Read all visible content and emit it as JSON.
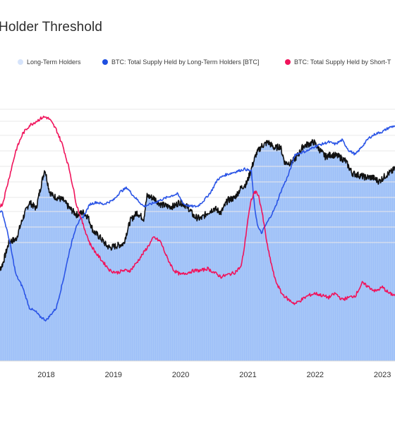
{
  "title": "Holder Threshold",
  "legend": [
    {
      "label": "Long-Term Holders",
      "color": "#d6e4fb"
    },
    {
      "label": "BTC: Total Supply Held by Long-Term Holders [BTC]",
      "color": "#1f4fe0"
    },
    {
      "label": "BTC: Total Supply Held by Short-T",
      "color": "#f0135b"
    }
  ],
  "colors": {
    "area_fill": "#9ec0f8",
    "price_line": "#111111",
    "lth_line": "#2b55e6",
    "sth_line": "#f0135b",
    "grid": "#e9e9e9"
  },
  "chart_data": {
    "type": "line",
    "grid": true,
    "x_range": [
      2017.25,
      2023.25
    ],
    "x_ticks": [
      "2018",
      "2019",
      "2020",
      "2021",
      "2022",
      "2023"
    ],
    "x_tick_values": [
      2018,
      2019,
      2020,
      2021,
      2022,
      2023
    ],
    "y_range": [
      0,
      100
    ],
    "note_units": "relative scale 0-100, unlabeled in original",
    "series": [
      {
        "key": "price_area",
        "x": [
          2017.25,
          2017.35,
          2017.45,
          2017.55,
          2017.65,
          2017.75,
          2017.85,
          2017.95,
          2017.98,
          2018.05,
          2018.1,
          2018.18,
          2018.25,
          2018.35,
          2018.45,
          2018.55,
          2018.62,
          2018.7,
          2018.8,
          2018.9,
          2018.95,
          2019.05,
          2019.15,
          2019.25,
          2019.35,
          2019.45,
          2019.5,
          2019.6,
          2019.7,
          2019.8,
          2019.9,
          2019.98,
          2020.05,
          2020.12,
          2020.2,
          2020.3,
          2020.4,
          2020.5,
          2020.6,
          2020.7,
          2020.8,
          2020.9,
          2020.98,
          2021.05,
          2021.12,
          2021.2,
          2021.3,
          2021.4,
          2021.48,
          2021.55,
          2021.65,
          2021.75,
          2021.82,
          2021.9,
          2021.98,
          2022.05,
          2022.15,
          2022.25,
          2022.35,
          2022.45,
          2022.55,
          2022.65,
          2022.75,
          2022.85,
          2022.95,
          2023.05,
          2023.15,
          2023.25
        ],
        "y": [
          27,
          33,
          44,
          45,
          55,
          63,
          60,
          75,
          79,
          68,
          66,
          65,
          64,
          60,
          57,
          58,
          56,
          49,
          46,
          42,
          41,
          42,
          43,
          54,
          58,
          55,
          66,
          65,
          62,
          61,
          61,
          63,
          62,
          60,
          56,
          55,
          58,
          60,
          58,
          64,
          65,
          70,
          72,
          79,
          86,
          90,
          92,
          89,
          90,
          82,
          82,
          86,
          90,
          91,
          92,
          89,
          85,
          86,
          85,
          83,
          77,
          76,
          75,
          75,
          73,
          76,
          78,
          82
        ]
      },
      {
        "key": "lth_supply",
        "x": [
          2017.25,
          2017.35,
          2017.45,
          2017.55,
          2017.65,
          2017.75,
          2017.85,
          2017.9,
          2017.95,
          2018.0,
          2018.05,
          2018.15,
          2018.25,
          2018.35,
          2018.45,
          2018.55,
          2018.65,
          2018.75,
          2018.85,
          2019.0,
          2019.1,
          2019.2,
          2019.3,
          2019.45,
          2019.55,
          2019.7,
          2019.85,
          2019.95,
          2020.05,
          2020.15,
          2020.25,
          2020.35,
          2020.45,
          2020.55,
          2020.65,
          2020.75,
          2020.85,
          2020.95,
          2021.05,
          2021.1,
          2021.15,
          2021.2,
          2021.3,
          2021.4,
          2021.5,
          2021.6,
          2021.7,
          2021.8,
          2021.9,
          2022.0,
          2022.1,
          2022.2,
          2022.3,
          2022.4,
          2022.5,
          2022.6,
          2022.7,
          2022.8,
          2022.9,
          2023.0,
          2023.1,
          2023.2,
          2023.25
        ],
        "y": [
          60,
          58,
          45,
          28,
          22,
          12,
          10,
          8,
          7,
          6,
          8,
          12,
          25,
          40,
          52,
          56,
          62,
          63,
          62,
          64,
          68,
          70,
          66,
          61,
          62,
          64,
          66,
          67,
          62,
          61,
          61,
          64,
          68,
          74,
          76,
          77,
          78,
          79,
          78,
          60,
          51,
          48,
          54,
          60,
          69,
          76,
          86,
          87,
          88,
          90,
          91,
          92,
          91,
          93,
          88,
          86,
          90,
          94,
          96,
          97,
          99,
          100,
          100
        ]
      },
      {
        "key": "sth_supply",
        "x": [
          2017.25,
          2017.35,
          2017.45,
          2017.55,
          2017.65,
          2017.75,
          2017.85,
          2017.95,
          2018.0,
          2018.05,
          2018.15,
          2018.25,
          2018.35,
          2018.45,
          2018.55,
          2018.65,
          2018.75,
          2018.85,
          2018.95,
          2019.05,
          2019.15,
          2019.25,
          2019.35,
          2019.5,
          2019.6,
          2019.7,
          2019.8,
          2019.9,
          2020.0,
          2020.1,
          2020.2,
          2020.3,
          2020.4,
          2020.5,
          2020.6,
          2020.7,
          2020.8,
          2020.9,
          2020.95,
          2021.0,
          2021.05,
          2021.1,
          2021.15,
          2021.2,
          2021.3,
          2021.4,
          2021.5,
          2021.6,
          2021.7,
          2021.8,
          2021.9,
          2022.0,
          2022.1,
          2022.2,
          2022.3,
          2022.4,
          2022.5,
          2022.6,
          2022.7,
          2022.8,
          2022.9,
          2023.0,
          2023.1,
          2023.2,
          2023.25
        ],
        "y": [
          60,
          62,
          75,
          88,
          96,
          100,
          102,
          104,
          104,
          103,
          98,
          90,
          78,
          62,
          52,
          43,
          38,
          34,
          30,
          29,
          30,
          30,
          34,
          41,
          46,
          44,
          36,
          30,
          28,
          29,
          30,
          30,
          31,
          29,
          27,
          28,
          29,
          32,
          42,
          55,
          64,
          68,
          67,
          60,
          40,
          26,
          19,
          16,
          14,
          16,
          18,
          19,
          18,
          17,
          19,
          16,
          17,
          18,
          24,
          22,
          20,
          22,
          19,
          18,
          17
        ]
      }
    ]
  }
}
